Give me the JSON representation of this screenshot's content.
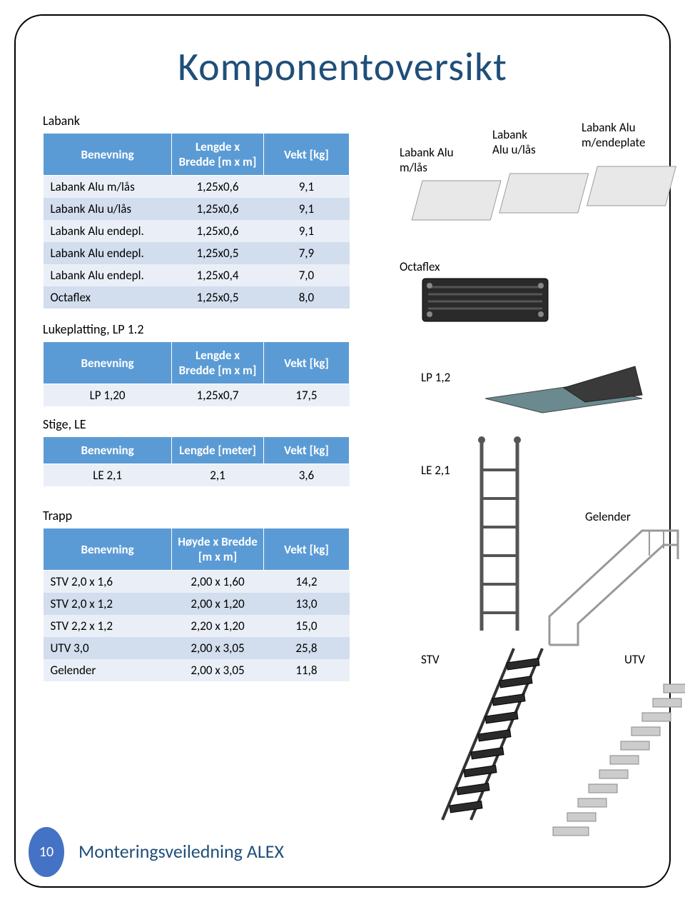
{
  "title": "Komponentoversikt",
  "footer": "Monteringsveiledning ALEX",
  "page_number": "10",
  "colors": {
    "header_bg": "#5b9bd5",
    "title": "#1f4e79",
    "row_odd": "#eaeff7",
    "row_even": "#d2deee",
    "badge": "#4472c4"
  },
  "tables": {
    "labank": {
      "label": "Labank",
      "headers": [
        "Benevning",
        "Lengde x Bredde [m x m]",
        "Vekt [kg]"
      ],
      "rows": [
        [
          "Labank Alu m/lås",
          "1,25x0,6",
          "9,1"
        ],
        [
          "Labank Alu u/lås",
          "1,25x0,6",
          "9,1"
        ],
        [
          "Labank Alu endepl.",
          "1,25x0,6",
          "9,1"
        ],
        [
          "Labank Alu endepl.",
          "1,25x0,5",
          "7,9"
        ],
        [
          "Labank Alu endepl.",
          "1,25x0,4",
          "7,0"
        ],
        [
          "Octaflex",
          "1,25x0,5",
          "8,0"
        ]
      ]
    },
    "lukeplatting": {
      "label": "Lukeplatting, LP 1.2",
      "headers": [
        "Benevning",
        "Lengde x Bredde [m x m]",
        "Vekt [kg]"
      ],
      "rows": [
        [
          "LP 1,20",
          "1,25x0,7",
          "17,5"
        ]
      ]
    },
    "stige": {
      "label": "Stige, LE",
      "headers": [
        "Benevning",
        "Lengde [meter]",
        "Vekt [kg]"
      ],
      "rows": [
        [
          "LE 2,1",
          "2,1",
          "3,6"
        ]
      ]
    },
    "trapp": {
      "label": "Trapp",
      "headers": [
        "Benevning",
        "Høyde x Bredde [m x m]",
        "Vekt [kg]"
      ],
      "rows": [
        [
          "STV 2,0 x 1,6",
          "2,00 x 1,60",
          "14,2"
        ],
        [
          "STV 2,0 x 1,2",
          "2,00 x 1,20",
          "13,0"
        ],
        [
          "STV 2,2 x 1,2",
          "2,20 x 1,20",
          "15,0"
        ],
        [
          "UTV 3,0",
          "2,00 x 3,05",
          "25,8"
        ],
        [
          "Gelender",
          "2,00 x 3,05",
          "11,8"
        ]
      ]
    }
  },
  "img_labels": {
    "labank_mlas": "Labank Alu m/lås",
    "labank_ulas": "Labank Alu u/lås",
    "labank_endeplate": "Labank Alu m/endeplate",
    "octaflex": "Octaflex",
    "lp12": "LP 1,2",
    "le21": "LE 2,1",
    "gelender": "Gelender",
    "stv": "STV",
    "utv": "UTV"
  }
}
